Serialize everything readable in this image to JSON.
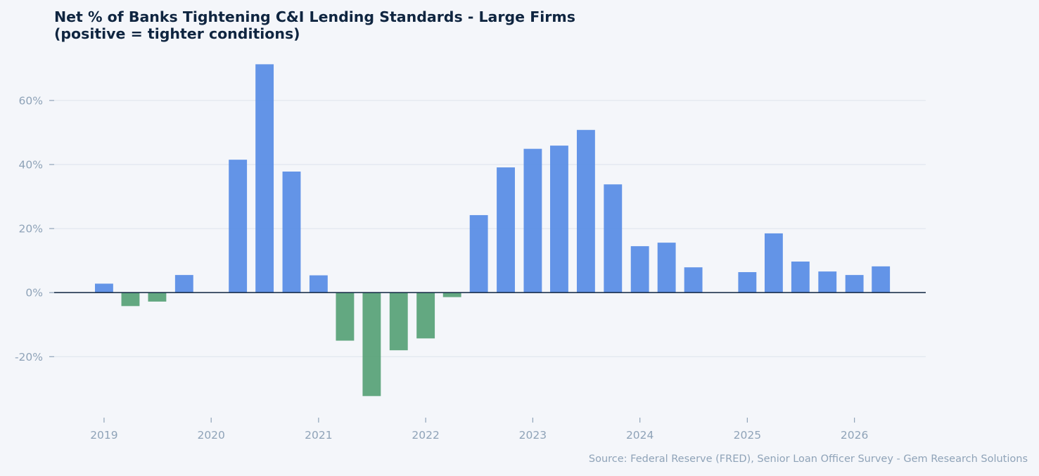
{
  "chart_data": {
    "type": "bar",
    "title": "Net % of Banks Tightening C&I Lending Standards - Large Firms",
    "subtitle": "(positive = tighter conditions)",
    "source": "Source: Federal Reserve (FRED), Senior Loan Officer Survey - Gem Research Solutions",
    "xlabel": "",
    "ylabel": "",
    "x": [
      "2019-01-01",
      "2019-04-01",
      "2019-07-01",
      "2019-10-01",
      "2020-04-01",
      "2020-07-01",
      "2020-10-01",
      "2021-01-01",
      "2021-04-01",
      "2021-07-01",
      "2021-10-01",
      "2022-01-01",
      "2022-04-01",
      "2022-07-01",
      "2022-10-01",
      "2023-01-01",
      "2023-04-01",
      "2023-07-01",
      "2023-10-01",
      "2024-01-01",
      "2024-04-01",
      "2024-07-01",
      "2025-01-01",
      "2025-04-01",
      "2025-07-01",
      "2025-10-01",
      "2026-01-01",
      "2026-04-01"
    ],
    "values": [
      2.8,
      -4.2,
      -2.8,
      5.5,
      41.5,
      71.3,
      37.8,
      5.4,
      -15.0,
      -32.3,
      -18.0,
      -14.3,
      -1.4,
      24.2,
      39.1,
      44.9,
      45.9,
      50.8,
      33.8,
      14.5,
      15.6,
      7.9,
      6.4,
      18.5,
      9.7,
      6.6,
      5.5,
      8.2
    ],
    "xlim": [
      "2018-07-15",
      "2026-09-01"
    ],
    "ylim": [
      -37.5,
      76
    ],
    "yticks": [
      -20,
      0,
      20,
      40,
      60
    ],
    "ytick_labels": [
      "-20%",
      "0%",
      "20%",
      "40%",
      "60%"
    ],
    "xticks": [
      "2019-01-01",
      "2020-01-01",
      "2021-01-01",
      "2022-01-01",
      "2023-01-01",
      "2024-01-01",
      "2025-01-01",
      "2026-01-01"
    ],
    "xtick_labels": [
      "2019",
      "2020",
      "2021",
      "2022",
      "2023",
      "2024",
      "2025",
      "2026"
    ],
    "grid": "horizontal",
    "legend": "none",
    "colors": {
      "positive": "#5b8ee6",
      "negative": "#5ba37a",
      "zero_line": "#0f2540",
      "grid": "#dde3ec",
      "tick_text": "#8fa3b8",
      "title": "#0f2540",
      "background": "#f4f6fa"
    }
  }
}
